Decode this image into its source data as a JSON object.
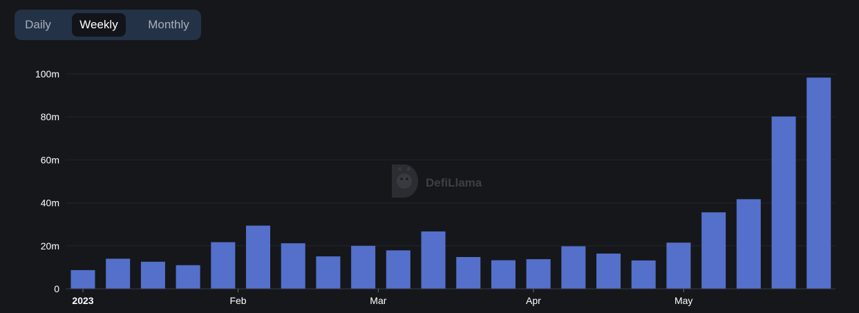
{
  "tabs": [
    {
      "label": "Daily",
      "active": false
    },
    {
      "label": "Weekly",
      "active": true
    },
    {
      "label": "Monthly",
      "active": false
    }
  ],
  "watermark": {
    "text": "DefiLlama",
    "icon": "llama-logo-icon"
  },
  "colors": {
    "bar": "#5470cb",
    "background": "#16171b",
    "grid": "#24262c",
    "axis_text": "#ffffff"
  },
  "chart_data": {
    "type": "bar",
    "title": "",
    "xlabel": "",
    "ylabel": "",
    "ylim": [
      0,
      100
    ],
    "yticks": [
      {
        "value": 0,
        "label": "0"
      },
      {
        "value": 20,
        "label": "20m"
      },
      {
        "value": 40,
        "label": "40m"
      },
      {
        "value": 60,
        "label": "60m"
      },
      {
        "value": 80,
        "label": "80m"
      },
      {
        "value": 100,
        "label": "100m"
      }
    ],
    "xaxis": {
      "type": "date",
      "min": "2023-01-01",
      "max": "2023-05-29"
    },
    "xticks": [
      {
        "date": "2023-01-01",
        "label": "2023",
        "bold": true
      },
      {
        "date": "2023-02-01",
        "label": "Feb",
        "bold": false
      },
      {
        "date": "2023-03-01",
        "label": "Mar",
        "bold": false
      },
      {
        "date": "2023-04-01",
        "label": "Apr",
        "bold": false
      },
      {
        "date": "2023-05-01",
        "label": "May",
        "bold": false
      }
    ],
    "series": [
      {
        "x": [
          "2023-01-01",
          "2023-01-08",
          "2023-01-15",
          "2023-01-22",
          "2023-01-29",
          "2023-02-05",
          "2023-02-12",
          "2023-02-19",
          "2023-02-26",
          "2023-03-05",
          "2023-03-12",
          "2023-03-19",
          "2023-03-26",
          "2023-04-02",
          "2023-04-09",
          "2023-04-16",
          "2023-04-23",
          "2023-04-30",
          "2023-05-07",
          "2023-05-14",
          "2023-05-21",
          "2023-05-28"
        ],
        "values": [
          8.7,
          14,
          12.6,
          11,
          21.7,
          29.4,
          21.2,
          15.1,
          20,
          17.9,
          26.7,
          14.8,
          13.3,
          13.8,
          19.8,
          16.4,
          13.2,
          21.5,
          35.6,
          41.7,
          80.2,
          98.3
        ]
      }
    ]
  }
}
